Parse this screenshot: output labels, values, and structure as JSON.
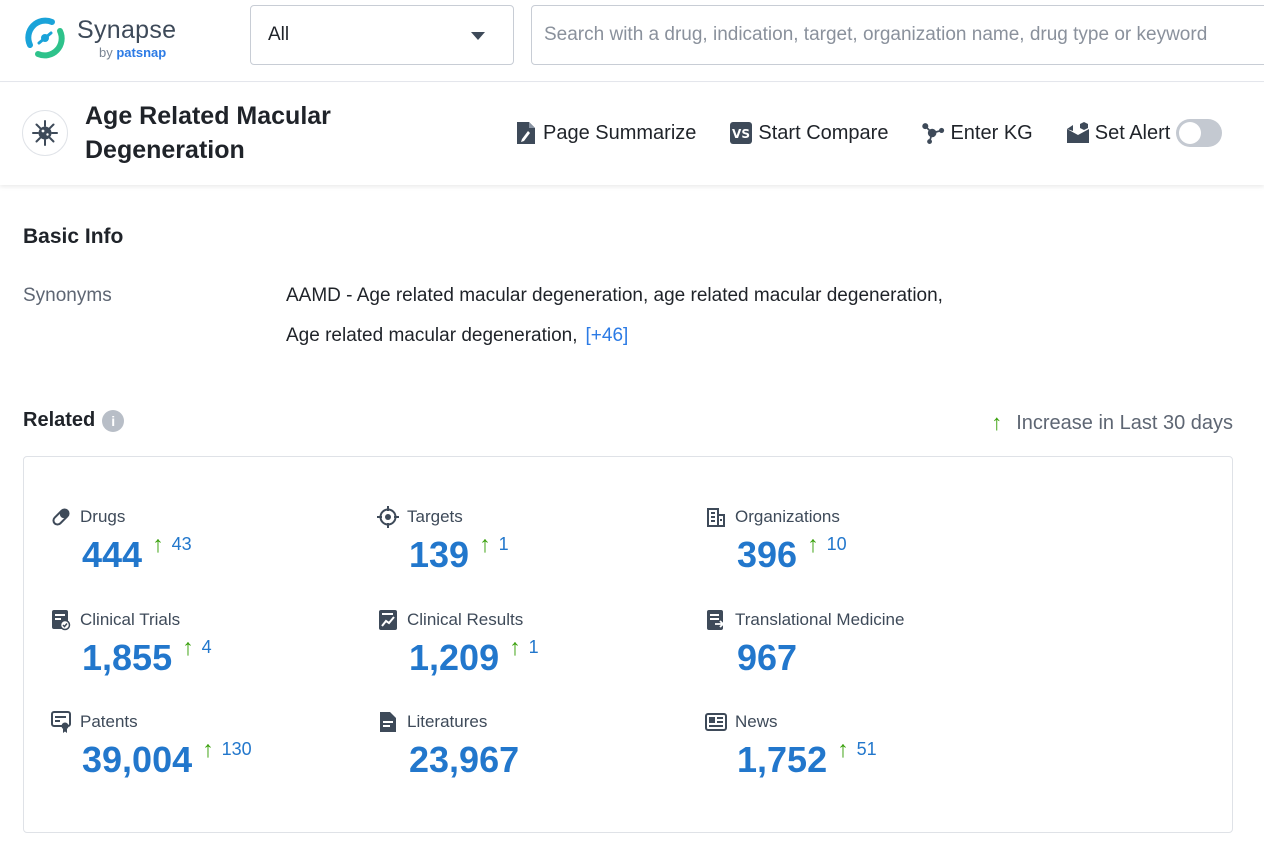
{
  "brand": {
    "name": "Synapse",
    "by_prefix": "by ",
    "by_name": "patsnap"
  },
  "search": {
    "scope_value": "All",
    "placeholder": "Search with a drug, indication, target, organization name, drug type or keyword"
  },
  "entity": {
    "title": "Age Related Macular Degeneration",
    "icon": "virus-icon"
  },
  "actions": [
    {
      "label": "Page Summarize",
      "icon": "summarize-icon"
    },
    {
      "label": "Start Compare",
      "icon": "compare-icon"
    },
    {
      "label": "Enter KG",
      "icon": "knowledge-graph-icon"
    },
    {
      "label": "Set Alert",
      "icon": "alert-icon",
      "toggle_on": false
    }
  ],
  "basic_info": {
    "title": "Basic Info",
    "synonyms_label": "Synonyms",
    "synonyms_line1": "AAMD - Age related macular degeneration,  age related macular degeneration,",
    "synonyms_line2": "Age related macular degeneration,",
    "synonyms_more": "[+46]"
  },
  "related": {
    "title": "Related",
    "legend_text": "Increase in Last 30 days",
    "arrow_glyph": "↑",
    "accent_color": "#2277cc",
    "increase_color": "#3ca20f",
    "items": [
      {
        "name": "Drugs",
        "value": "444",
        "increase": "43",
        "icon": "pill-icon"
      },
      {
        "name": "Targets",
        "value": "139",
        "increase": "1",
        "icon": "target-icon"
      },
      {
        "name": "Organizations",
        "value": "396",
        "increase": "10",
        "icon": "building-icon"
      },
      {
        "name": "Clinical Trials",
        "value": "1,855",
        "increase": "4",
        "icon": "clinical-trials-icon"
      },
      {
        "name": "Clinical Results",
        "value": "1,209",
        "increase": "1",
        "icon": "clinical-results-icon"
      },
      {
        "name": "Translational Medicine",
        "value": "967",
        "increase": "",
        "icon": "translational-medicine-icon"
      },
      {
        "name": "Patents",
        "value": "39,004",
        "increase": "130",
        "icon": "patent-icon"
      },
      {
        "name": "Literatures",
        "value": "23,967",
        "increase": "",
        "icon": "document-icon"
      },
      {
        "name": "News",
        "value": "1,752",
        "increase": "51",
        "icon": "news-icon"
      }
    ]
  }
}
